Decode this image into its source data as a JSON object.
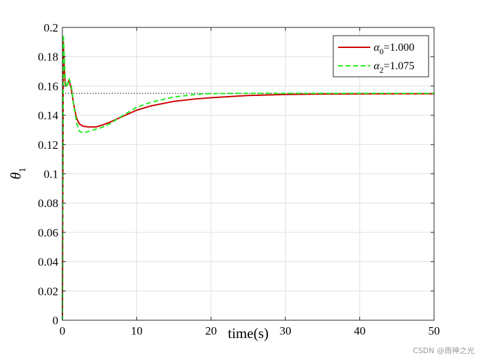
{
  "chart_data": {
    "type": "line",
    "xlabel": "time(s)",
    "ylabel": {
      "symbol": "θ",
      "subscript": "1"
    },
    "xlim": [
      0,
      50
    ],
    "ylim": [
      0,
      0.2
    ],
    "xticks": [
      0,
      10,
      20,
      30,
      40,
      50
    ],
    "yticks": [
      0,
      0.02,
      0.04,
      0.06,
      0.08,
      0.1,
      0.12,
      0.14,
      0.16,
      0.18,
      0.2
    ],
    "grid": true,
    "legend_position": "top-right",
    "reference_line": {
      "y": 0.155,
      "style": "dotted",
      "color": "#000000"
    },
    "series": [
      {
        "name": "α0=1.000",
        "legend": {
          "symbol": "α",
          "subscript": "0",
          "value": "=1.000"
        },
        "color": "#cc0000",
        "style": "solid",
        "x": [
          0,
          0.12,
          0.25,
          0.4,
          0.6,
          0.9,
          1.2,
          1.5,
          1.9,
          2.3,
          2.8,
          3.5,
          4.5,
          5.5,
          6.5,
          8,
          10,
          12,
          15,
          18,
          20,
          25,
          30,
          35,
          40,
          45,
          50
        ],
        "y": [
          0,
          0.19,
          0.172,
          0.161,
          0.16,
          0.164,
          0.158,
          0.148,
          0.138,
          0.134,
          0.1325,
          0.132,
          0.132,
          0.1335,
          0.1355,
          0.139,
          0.1435,
          0.1465,
          0.1495,
          0.1512,
          0.152,
          0.1535,
          0.1542,
          0.1545,
          0.1546,
          0.1547,
          0.1547
        ]
      },
      {
        "name": "α2=1.075",
        "legend": {
          "symbol": "α",
          "subscript": "2",
          "value": "=1.075"
        },
        "color": "#22ee22",
        "style": "dashed",
        "x": [
          0,
          0.12,
          0.25,
          0.4,
          0.6,
          0.9,
          1.2,
          1.5,
          1.9,
          2.3,
          2.8,
          3.5,
          4.5,
          5.5,
          6.5,
          8,
          10,
          12,
          15,
          18,
          20,
          25,
          30,
          35,
          40,
          45,
          50
        ],
        "y": [
          0,
          0.195,
          0.18,
          0.163,
          0.159,
          0.165,
          0.16,
          0.148,
          0.135,
          0.129,
          0.128,
          0.129,
          0.1305,
          0.132,
          0.1345,
          0.1395,
          0.1455,
          0.149,
          0.1525,
          0.1543,
          0.1548,
          0.155,
          0.155,
          0.155,
          0.155,
          0.155,
          0.155
        ]
      }
    ]
  },
  "watermark": "CSDN @雨神之光"
}
